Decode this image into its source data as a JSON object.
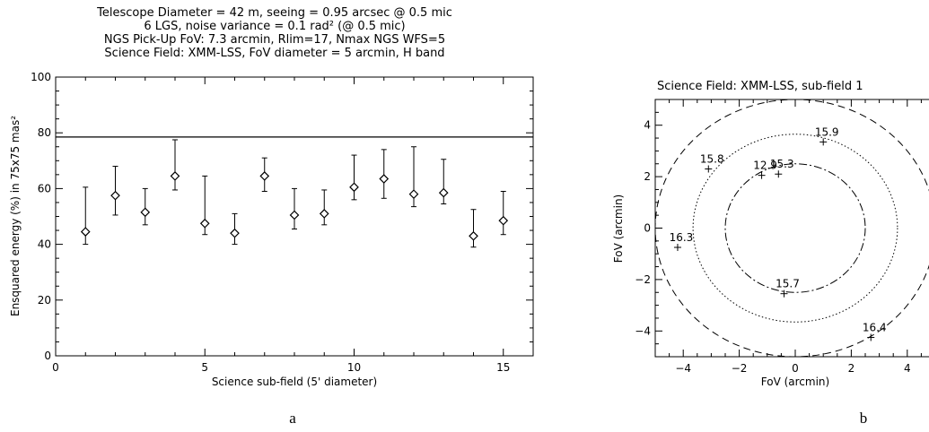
{
  "figure": {
    "caption_a": "a",
    "caption_b": "b"
  },
  "chart_data": [
    {
      "type": "scatter",
      "title_lines": [
        "Telescope Diameter = 42 m, seeing = 0.95 arcsec @ 0.5 mic",
        "6 LGS, noise variance = 0.1 rad² (@ 0.5 mic)",
        "NGS Pick-Up FoV: 7.3 arcmin, Rlim=17, Nmax NGS WFS=5",
        "Science Field: XMM-LSS, FoV diameter = 5 arcmin, H band"
      ],
      "xlabel": "Science sub-field (5' diameter)",
      "ylabel": "Ensquared energy (%) in 75x75 mas²",
      "xlim": [
        0,
        16
      ],
      "ylim": [
        0,
        100
      ],
      "xticks": [
        0,
        5,
        10,
        15
      ],
      "yticks": [
        0,
        20,
        40,
        60,
        80,
        100
      ],
      "reference_line": 78.5,
      "series": [
        {
          "marker": "diamond",
          "x": [
            1,
            2,
            3,
            4,
            5,
            6,
            7,
            8,
            9,
            10,
            11,
            12,
            13,
            14,
            15
          ],
          "y": [
            44.5,
            57.5,
            51.5,
            64.5,
            47.5,
            44,
            64.5,
            50.5,
            51,
            60.5,
            63.5,
            58,
            58.5,
            43,
            48.5
          ],
          "low": [
            40,
            50.5,
            47,
            59.5,
            43.5,
            40,
            59,
            45.5,
            47,
            56,
            56.5,
            53.5,
            54.5,
            39,
            43.5
          ],
          "high": [
            60.5,
            68,
            60,
            77.5,
            64.5,
            51,
            71,
            60,
            59.5,
            72,
            74,
            75,
            70.5,
            52.5,
            59
          ]
        }
      ]
    },
    {
      "type": "scatter",
      "title": "Science Field: XMM-LSS, sub-field 1",
      "xlabel": "FoV (arcmin)",
      "ylabel": "FoV (arcmin)",
      "xlim": [
        -5,
        5
      ],
      "ylim": [
        -5,
        5
      ],
      "xticks": [
        -4,
        -2,
        0,
        2,
        4
      ],
      "yticks": [
        -4,
        -2,
        0,
        2,
        4
      ],
      "circles": [
        {
          "radius": 2.5,
          "style": "dash-dot"
        },
        {
          "radius": 3.65,
          "style": "dotted"
        },
        {
          "radius": 5.0,
          "style": "dashed"
        }
      ],
      "stars": [
        {
          "x": 1.0,
          "y": 3.35,
          "label": "15.9"
        },
        {
          "x": -3.1,
          "y": 2.3,
          "label": "15.8"
        },
        {
          "x": -1.2,
          "y": 2.05,
          "label": "12.9"
        },
        {
          "x": -0.6,
          "y": 2.1,
          "label": "15.3"
        },
        {
          "x": -4.2,
          "y": -0.75,
          "label": "16.3"
        },
        {
          "x": -0.4,
          "y": -2.55,
          "label": "15.7"
        },
        {
          "x": 2.7,
          "y": -4.25,
          "label": "16.4"
        }
      ]
    }
  ]
}
